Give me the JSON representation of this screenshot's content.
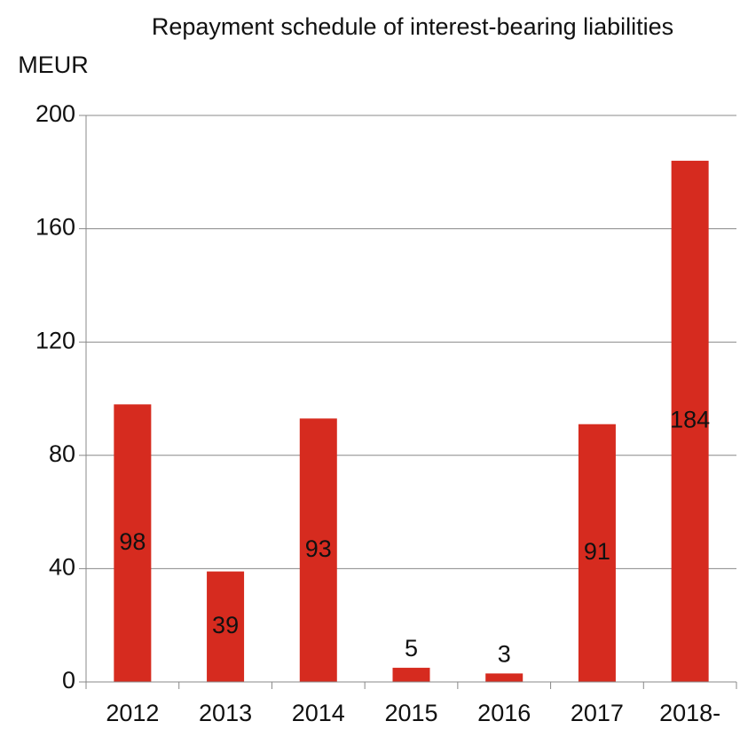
{
  "chart_data": {
    "type": "bar",
    "title": "Repayment schedule of interest-bearing liabilities",
    "y_label": "MEUR",
    "categories": [
      "2012",
      "2013",
      "2014",
      "2015",
      "2016",
      "2017",
      "2018-"
    ],
    "values": [
      98,
      39,
      93,
      5,
      3,
      91,
      184
    ],
    "color": "#d62b1f",
    "ylim": [
      0,
      200
    ],
    "yticks": [
      0,
      40,
      80,
      120,
      160,
      200
    ],
    "grid": true
  }
}
